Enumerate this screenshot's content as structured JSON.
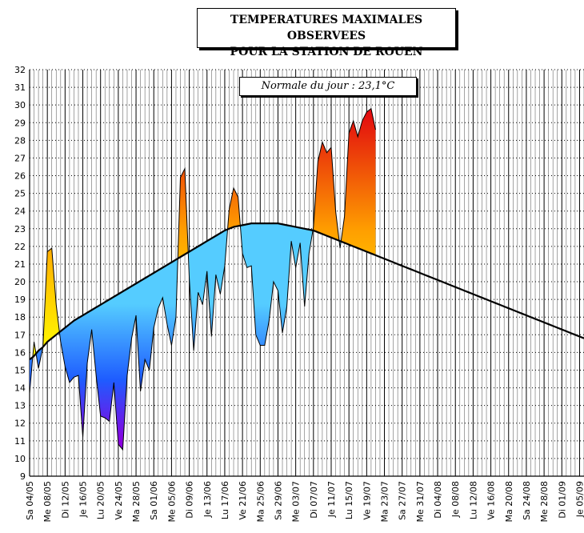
{
  "title_line1": "TEMPERATURES MAXIMALES OBSERVEES",
  "title_line2": "POUR LA STATION DE ROUEN",
  "normale_label": "Normale du jour : 23,1°C",
  "colors": {
    "cold_light": "#66d4ff",
    "cold_dark": "#7a00e6",
    "warm_light": "#ffe000",
    "warm_dark": "#e01a1a"
  },
  "chart_data": {
    "type": "area",
    "ylim": [
      9,
      32
    ],
    "yticks": [
      9,
      10,
      11,
      12,
      13,
      14,
      15,
      16,
      17,
      18,
      19,
      20,
      21,
      22,
      23,
      24,
      25,
      26,
      27,
      28,
      29,
      30,
      31,
      32
    ],
    "xlim": [
      0,
      125
    ],
    "x_tick_labels": [
      "Sa 04/05",
      "Me 08/05",
      "Di 12/05",
      "Je 16/05",
      "Lu 20/05",
      "Ve 24/05",
      "Ma 28/05",
      "Sa 01/06",
      "Me 05/06",
      "Di 09/06",
      "Je 13/06",
      "Lu 17/06",
      "Ve 21/06",
      "Ma 25/06",
      "Sa 29/06",
      "Me 03/07",
      "Di 07/07",
      "Je 11/07",
      "Lu 15/07",
      "Ve 19/07",
      "Ma 23/07",
      "Sa 27/07",
      "Me 31/07",
      "Di 04/08",
      "Je 08/08",
      "Lu 12/08",
      "Ve 16/08",
      "Ma 20/08",
      "Sa 24/08",
      "Me 28/08",
      "Di 01/09",
      "Je 05/09"
    ],
    "series": [
      {
        "values": [
          13.7,
          16.6,
          15.1,
          16.3,
          21.7,
          21.9,
          18.7,
          16.6,
          15.2,
          14.3,
          14.6,
          14.7,
          11.2,
          15.4,
          17.3,
          14.7,
          12.4,
          12.3,
          12.1,
          14.3,
          10.8,
          10.5,
          14.7,
          16.8,
          18.1,
          13.8,
          15.6,
          15.0,
          17.4,
          18.5,
          19.1,
          17.6,
          16.4,
          18.0,
          25.9,
          26.4,
          20.2,
          16.1,
          19.4,
          18.7,
          20.6,
          16.9,
          20.4,
          19.3,
          20.9,
          24.1,
          25.3,
          24.8,
          21.6,
          20.8,
          20.9,
          17.0,
          16.4,
          16.4,
          17.8,
          20.0,
          19.5,
          17.1,
          18.6,
          22.3,
          20.8,
          22.2,
          18.6,
          21.6,
          23.1,
          26.8,
          27.9,
          27.3,
          27.6,
          24.0,
          21.9,
          23.7,
          28.4,
          29.1,
          28.2,
          29.1,
          29.6,
          29.8,
          28.6
        ]
      },
      {
        "values": [
          15.6,
          15.8,
          16.1,
          16.3,
          16.6,
          16.8,
          17.0,
          17.2,
          17.4,
          17.6,
          17.8,
          17.95,
          18.1,
          18.25,
          18.4,
          18.55,
          18.7,
          18.85,
          19.0,
          19.15,
          19.3,
          19.45,
          19.6,
          19.75,
          19.9,
          20.05,
          20.2,
          20.35,
          20.5,
          20.65,
          20.8,
          20.95,
          21.1,
          21.25,
          21.4,
          21.55,
          21.7,
          21.85,
          22.0,
          22.15,
          22.3,
          22.45,
          22.6,
          22.75,
          22.9,
          23.0,
          23.1,
          23.15,
          23.2,
          23.25,
          23.3,
          23.3,
          23.3,
          23.3,
          23.3,
          23.3,
          23.3,
          23.25,
          23.2,
          23.15,
          23.1,
          23.05,
          23.0,
          22.95,
          22.9,
          22.8,
          22.7,
          22.6,
          22.5,
          22.4,
          22.3,
          22.2,
          22.1,
          22.0,
          21.9,
          21.8,
          21.7,
          21.6,
          21.5,
          21.4,
          21.3,
          21.2,
          21.1,
          21.0,
          20.9,
          20.8,
          20.7,
          20.6,
          20.5,
          20.4,
          20.3,
          20.2,
          20.1,
          20.0,
          19.9,
          19.8,
          19.7,
          19.6,
          19.5,
          19.4,
          19.3,
          19.2,
          19.1,
          19.0,
          18.9,
          18.8,
          18.7,
          18.6,
          18.5,
          18.4,
          18.3,
          18.2,
          18.1,
          18.0,
          17.9,
          17.8,
          17.7,
          17.6,
          17.5,
          17.4,
          17.3,
          17.2,
          17.1,
          17.0,
          16.9,
          16.8
        ]
      }
    ]
  }
}
